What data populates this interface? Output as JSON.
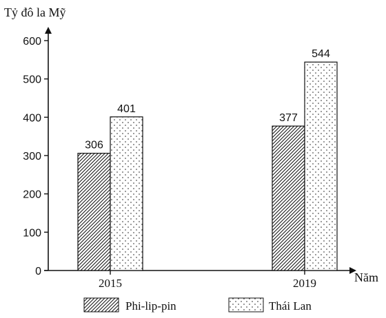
{
  "chart_data": {
    "type": "bar",
    "ylabel": "Tỷ đô la Mỹ",
    "xlabel": "Năm",
    "categories": [
      "2015",
      "2019"
    ],
    "series": [
      {
        "name": "Phi-lip-pin",
        "values": [
          306,
          377
        ],
        "pattern": "diagonal-hatch"
      },
      {
        "name": "Thái Lan",
        "values": [
          401,
          544
        ],
        "pattern": "dots"
      }
    ],
    "ylim": [
      0,
      600
    ],
    "yticks": [
      "0",
      "100",
      "200",
      "300",
      "400",
      "500",
      "600"
    ],
    "grid": false,
    "legend_position": "bottom",
    "data_labels": true,
    "colors": {
      "ink": "#111111",
      "fill": "#ffffff"
    }
  }
}
